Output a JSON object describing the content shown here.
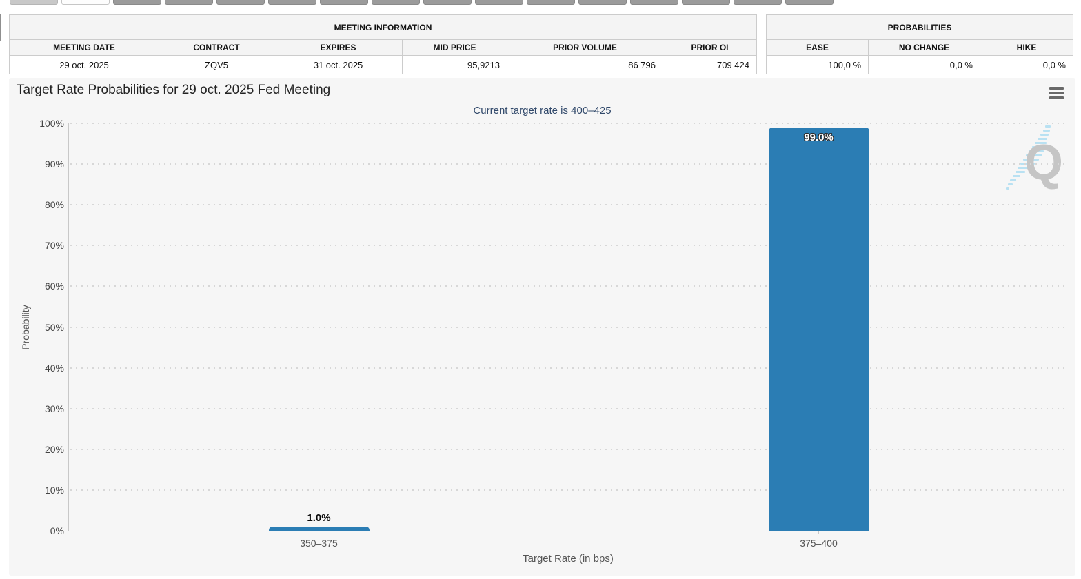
{
  "browser_tabs": {
    "items": [
      {
        "state": "light"
      },
      {
        "state": "active"
      },
      {
        "state": "gray"
      },
      {
        "state": "gray"
      },
      {
        "state": "gray"
      },
      {
        "state": "gray"
      },
      {
        "state": "gray"
      },
      {
        "state": "gray"
      },
      {
        "state": "gray"
      },
      {
        "state": "gray"
      },
      {
        "state": "gray"
      },
      {
        "state": "gray"
      },
      {
        "state": "gray"
      },
      {
        "state": "gray"
      },
      {
        "state": "gray"
      },
      {
        "state": "gray"
      }
    ]
  },
  "tables": {
    "meeting": {
      "title": "MEETING INFORMATION",
      "columns": [
        "MEETING DATE",
        "CONTRACT",
        "EXPIRES",
        "MID PRICE",
        "PRIOR VOLUME",
        "PRIOR OI"
      ],
      "row": [
        "29 oct. 2025",
        "ZQV5",
        "31 oct. 2025",
        "95,9213",
        "86 796",
        "709 424"
      ]
    },
    "probabilities": {
      "title": "PROBABILITIES",
      "columns": [
        "EASE",
        "NO CHANGE",
        "HIKE"
      ],
      "row": [
        "100,0 %",
        "0,0 %",
        "0,0 %"
      ]
    }
  },
  "chart_data": {
    "type": "bar",
    "title": "Target Rate Probabilities for 29 oct. 2025 Fed Meeting",
    "subtitle": "Current target rate is 400–425",
    "categories": [
      "350–375",
      "375–400"
    ],
    "values": [
      1.0,
      99.0
    ],
    "value_labels": [
      "1.0%",
      "99.0%"
    ],
    "xlabel": "Target Rate (in bps)",
    "ylabel": "Probability",
    "ylim": [
      0,
      100
    ],
    "yticks": [
      "0%",
      "10%",
      "20%",
      "30%",
      "40%",
      "50%",
      "60%",
      "70%",
      "80%",
      "90%",
      "100%"
    ],
    "grid": "horizontal dotted",
    "legend": "none"
  },
  "icons": {
    "context_menu": "hamburger-icon",
    "watermark": "quikstrike-q-logo"
  },
  "colors": {
    "bar": "#2b7db4",
    "subtitle": "#31496b",
    "panel_bg": "#f6f6f6",
    "watermark_gray": "#c5c5c5",
    "watermark_blue": "#aadcf2"
  }
}
